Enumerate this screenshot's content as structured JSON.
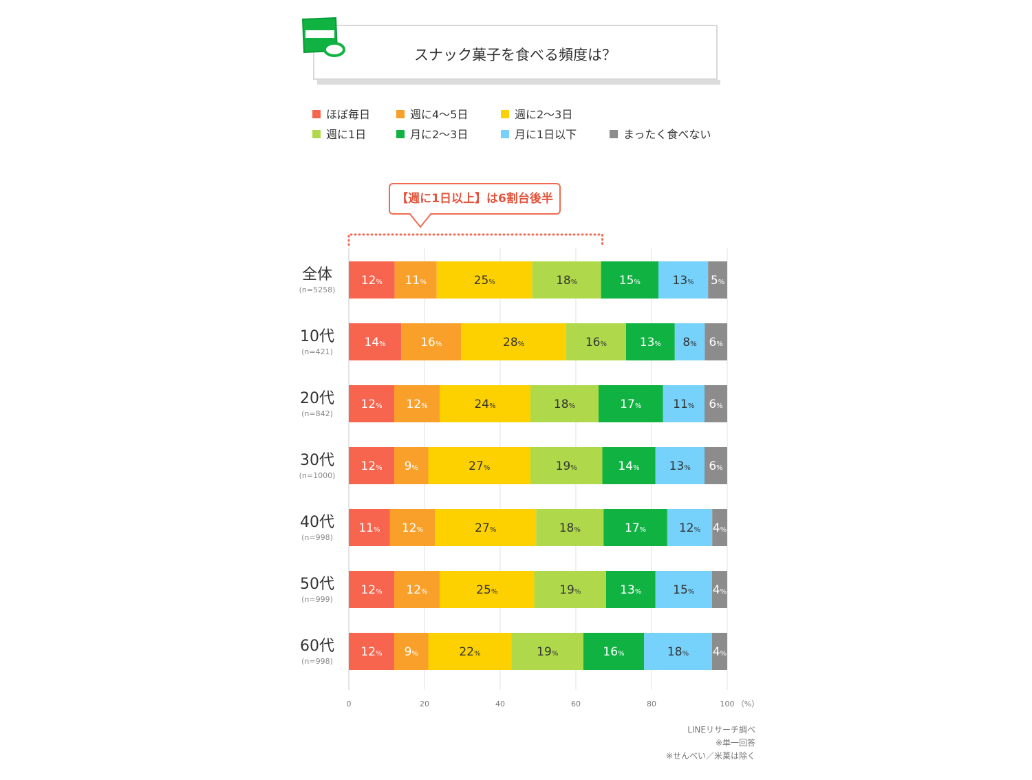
{
  "chart_data": {
    "type": "bar",
    "orientation": "horizontal",
    "stacked": true,
    "title": "スナック菓子を食べる頻度は？",
    "unit": "%",
    "x_axis_unit_label": "（%）",
    "xlim": [
      0,
      100
    ],
    "xticks": [
      "0",
      "20",
      "40",
      "60",
      "80",
      "100"
    ],
    "grid": true,
    "legend_position": "top",
    "annotation": "【週に1日以上】は6割台後半",
    "annotation_span": [
      0,
      67
    ],
    "categories": [
      {
        "label": "全体",
        "n": "(n=5258)"
      },
      {
        "label": "10代",
        "n": "(n=421)"
      },
      {
        "label": "20代",
        "n": "(n=842)"
      },
      {
        "label": "30代",
        "n": "(n=1000)"
      },
      {
        "label": "40代",
        "n": "(n=998)"
      },
      {
        "label": "50代",
        "n": "(n=999)"
      },
      {
        "label": "60代",
        "n": "(n=998)"
      }
    ],
    "series": [
      {
        "name": "ほぼ毎日",
        "color": "#f7654f",
        "values": [
          12,
          14,
          12,
          12,
          11,
          12,
          12
        ]
      },
      {
        "name": "週に4〜5日",
        "color": "#f9a02b",
        "values": [
          11,
          16,
          12,
          9,
          12,
          12,
          9
        ]
      },
      {
        "name": "週に2〜3日",
        "color": "#fdd100",
        "values": [
          25,
          28,
          24,
          27,
          27,
          25,
          22
        ]
      },
      {
        "name": "週に1日",
        "color": "#afd94b",
        "values": [
          18,
          16,
          18,
          19,
          18,
          19,
          19
        ]
      },
      {
        "name": "月に2〜3日",
        "color": "#10b242",
        "values": [
          15,
          13,
          17,
          14,
          17,
          13,
          16
        ]
      },
      {
        "name": "月に1日以下",
        "color": "#76d1fb",
        "values": [
          13,
          8,
          11,
          13,
          12,
          15,
          18
        ]
      },
      {
        "name": "まったく食べない",
        "color": "#8c8c8c",
        "values": [
          5,
          6,
          6,
          6,
          4,
          4,
          4
        ]
      }
    ]
  },
  "notes": [
    "LINEリサーチ調べ",
    "※単一回答",
    "※せんべい／米菓は除く"
  ]
}
